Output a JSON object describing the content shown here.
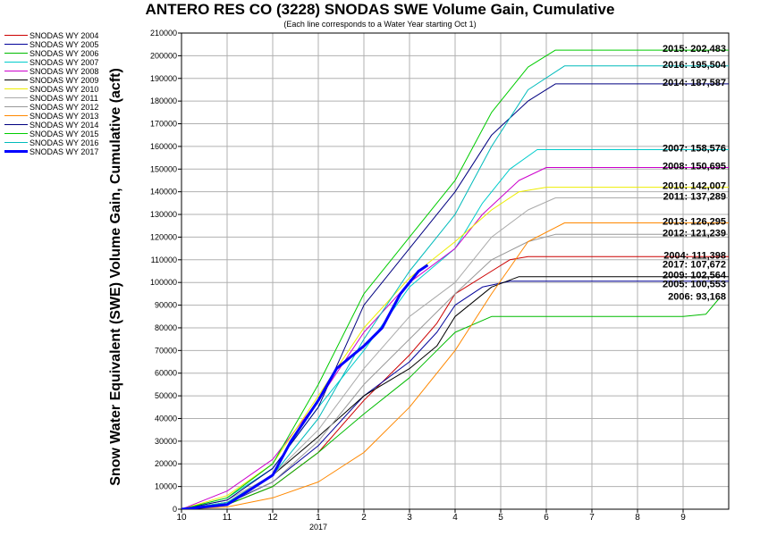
{
  "chart_data": {
    "type": "line",
    "title": "ANTERO RES CO (3228) SNODAS SWE Volume Gain, Cumulative",
    "subtitle": "(Each line corresponds to a Water Year starting Oct 1)",
    "ylabel": "Snow Water Equivalent (SWE) Volume Gain, Cumulative (acft)",
    "xlabel": "",
    "ylim": [
      0,
      210000
    ],
    "yticks": [
      0,
      10000,
      20000,
      30000,
      40000,
      50000,
      60000,
      70000,
      80000,
      90000,
      100000,
      110000,
      120000,
      130000,
      140000,
      150000,
      160000,
      170000,
      180000,
      190000,
      200000,
      210000
    ],
    "ytick_labels": [
      "0",
      "10000",
      "20000",
      "30000",
      "40000",
      "50000",
      "60000",
      "70000",
      "80000",
      "90000",
      "100000",
      "110000",
      "120000",
      "130000",
      "140000",
      "150000",
      "160000",
      "170000",
      "180000",
      "190000",
      "200000",
      "210000"
    ],
    "xlim": [
      0,
      12
    ],
    "xticks": [
      0,
      1,
      2,
      3,
      4,
      5,
      6,
      7,
      8,
      9,
      10,
      11
    ],
    "xtick_labels": [
      "10",
      "11",
      "12",
      "1",
      "2",
      "3",
      "4",
      "5",
      "6",
      "7",
      "8",
      "9"
    ],
    "x_year_label": "2017",
    "grid": true,
    "legend_position": "left",
    "series": [
      {
        "name": "SNODAS WY 2004",
        "color": "#cc0000",
        "width": 1,
        "end_label": "2004: 111,398",
        "points": [
          [
            0,
            0
          ],
          [
            1,
            2000
          ],
          [
            2,
            10000
          ],
          [
            3,
            25000
          ],
          [
            4,
            48000
          ],
          [
            5,
            68000
          ],
          [
            5.6,
            82000
          ],
          [
            6,
            95000
          ],
          [
            6.8,
            105000
          ],
          [
            7.2,
            110000
          ],
          [
            7.6,
            111398
          ],
          [
            12,
            111398
          ]
        ]
      },
      {
        "name": "SNODAS WY 2005",
        "color": "#000099",
        "width": 1,
        "end_label": "2005: 100,553",
        "points": [
          [
            0,
            0
          ],
          [
            1,
            2500
          ],
          [
            2,
            12000
          ],
          [
            3,
            28000
          ],
          [
            4,
            50000
          ],
          [
            5,
            65000
          ],
          [
            5.6,
            78000
          ],
          [
            6,
            90000
          ],
          [
            6.6,
            98000
          ],
          [
            7.2,
            100553
          ],
          [
            12,
            100553
          ]
        ]
      },
      {
        "name": "SNODAS WY 2006",
        "color": "#00bb00",
        "width": 1,
        "end_label": "2006: 93,168",
        "points": [
          [
            0,
            0
          ],
          [
            1,
            2000
          ],
          [
            2,
            10000
          ],
          [
            3,
            25000
          ],
          [
            4,
            42000
          ],
          [
            5,
            58000
          ],
          [
            5.6,
            70000
          ],
          [
            6,
            78000
          ],
          [
            6.8,
            85000
          ],
          [
            11,
            85000
          ],
          [
            11.5,
            86000
          ],
          [
            11.8,
            93168
          ]
        ]
      },
      {
        "name": "SNODAS WY 2007",
        "color": "#00cccc",
        "width": 1,
        "end_label": "2007: 158,576",
        "points": [
          [
            0,
            0
          ],
          [
            1,
            5000
          ],
          [
            2,
            18000
          ],
          [
            3,
            45000
          ],
          [
            4,
            70000
          ],
          [
            5,
            98000
          ],
          [
            6,
            115000
          ],
          [
            6.6,
            135000
          ],
          [
            7.2,
            150000
          ],
          [
            7.8,
            158576
          ],
          [
            12,
            158576
          ]
        ]
      },
      {
        "name": "SNODAS WY 2008",
        "color": "#cc00cc",
        "width": 1,
        "end_label": "2008: 150,695",
        "points": [
          [
            0,
            0
          ],
          [
            1,
            8000
          ],
          [
            2,
            22000
          ],
          [
            3,
            48000
          ],
          [
            4,
            78000
          ],
          [
            5,
            100000
          ],
          [
            6,
            115000
          ],
          [
            6.6,
            130000
          ],
          [
            7.4,
            145000
          ],
          [
            8,
            150695
          ],
          [
            12,
            150695
          ]
        ]
      },
      {
        "name": "SNODAS WY 2009",
        "color": "#000000",
        "width": 1,
        "end_label": "2009: 102,564",
        "points": [
          [
            0,
            0
          ],
          [
            1,
            3000
          ],
          [
            2,
            15000
          ],
          [
            3,
            32000
          ],
          [
            4,
            50000
          ],
          [
            5,
            62000
          ],
          [
            5.6,
            72000
          ],
          [
            6,
            85000
          ],
          [
            6.8,
            98000
          ],
          [
            7.4,
            102564
          ],
          [
            12,
            102564
          ]
        ]
      },
      {
        "name": "SNODAS WY 2010",
        "color": "#eeee00",
        "width": 1,
        "end_label": "2010: 142,007",
        "points": [
          [
            0,
            0
          ],
          [
            1,
            6000
          ],
          [
            2,
            20000
          ],
          [
            3,
            50000
          ],
          [
            4,
            80000
          ],
          [
            5,
            102000
          ],
          [
            6,
            118000
          ],
          [
            6.8,
            132000
          ],
          [
            7.4,
            140000
          ],
          [
            8,
            142007
          ],
          [
            12,
            142007
          ]
        ]
      },
      {
        "name": "SNODAS WY 2011",
        "color": "#aaaaaa",
        "width": 1,
        "end_label": "2011: 137,289",
        "points": [
          [
            0,
            0
          ],
          [
            1,
            4000
          ],
          [
            2,
            15000
          ],
          [
            3,
            35000
          ],
          [
            4,
            62000
          ],
          [
            5,
            85000
          ],
          [
            6,
            100000
          ],
          [
            6.8,
            120000
          ],
          [
            7.6,
            132000
          ],
          [
            8.2,
            137289
          ],
          [
            12,
            137289
          ]
        ]
      },
      {
        "name": "SNODAS WY 2012",
        "color": "#999999",
        "width": 1,
        "end_label": "2012: 121,239",
        "points": [
          [
            0,
            0
          ],
          [
            1,
            3000
          ],
          [
            2,
            12000
          ],
          [
            3,
            30000
          ],
          [
            4,
            55000
          ],
          [
            5,
            75000
          ],
          [
            6,
            95000
          ],
          [
            6.8,
            110000
          ],
          [
            7.6,
            118000
          ],
          [
            8.2,
            121239
          ],
          [
            12,
            121239
          ]
        ]
      },
      {
        "name": "SNODAS WY 2013",
        "color": "#ff8800",
        "width": 1,
        "end_label": "2013: 126,295",
        "points": [
          [
            0,
            0
          ],
          [
            1,
            1000
          ],
          [
            2,
            5000
          ],
          [
            3,
            12000
          ],
          [
            4,
            25000
          ],
          [
            5,
            45000
          ],
          [
            6,
            70000
          ],
          [
            6.8,
            95000
          ],
          [
            7.6,
            118000
          ],
          [
            8.4,
            126295
          ],
          [
            12,
            126295
          ]
        ]
      },
      {
        "name": "SNODAS WY 2014",
        "color": "#000080",
        "width": 1,
        "end_label": "2014: 187,587",
        "points": [
          [
            0,
            0
          ],
          [
            1,
            4000
          ],
          [
            2,
            18000
          ],
          [
            3,
            45000
          ],
          [
            4,
            90000
          ],
          [
            5,
            115000
          ],
          [
            6,
            140000
          ],
          [
            6.8,
            165000
          ],
          [
            7.6,
            180000
          ],
          [
            8.2,
            187587
          ],
          [
            12,
            187587
          ]
        ]
      },
      {
        "name": "SNODAS WY 2015",
        "color": "#00cc00",
        "width": 1,
        "end_label": "2015: 202,483",
        "points": [
          [
            0,
            0
          ],
          [
            1,
            5000
          ],
          [
            2,
            20000
          ],
          [
            3,
            55000
          ],
          [
            4,
            95000
          ],
          [
            5,
            120000
          ],
          [
            6,
            145000
          ],
          [
            6.8,
            175000
          ],
          [
            7.6,
            195000
          ],
          [
            8.2,
            202483
          ],
          [
            12,
            202483
          ]
        ]
      },
      {
        "name": "SNODAS WY 2016",
        "color": "#00bbbb",
        "width": 1,
        "end_label": "2016: 195,504",
        "points": [
          [
            0,
            0
          ],
          [
            1,
            3000
          ],
          [
            2,
            15000
          ],
          [
            3,
            40000
          ],
          [
            4,
            75000
          ],
          [
            5,
            105000
          ],
          [
            6,
            130000
          ],
          [
            6.8,
            160000
          ],
          [
            7.6,
            185000
          ],
          [
            8.4,
            195504
          ],
          [
            12,
            195504
          ]
        ]
      },
      {
        "name": "SNODAS WY 2017",
        "color": "#0000ff",
        "width": 3,
        "end_label": "2017: 107,672",
        "points": [
          [
            0,
            0
          ],
          [
            1,
            2000
          ],
          [
            2,
            15000
          ],
          [
            2.4,
            30000
          ],
          [
            3,
            48000
          ],
          [
            3.4,
            62000
          ],
          [
            4,
            72000
          ],
          [
            4.4,
            80000
          ],
          [
            4.8,
            95000
          ],
          [
            5.2,
            105000
          ],
          [
            5.4,
            107672
          ]
        ]
      }
    ]
  }
}
